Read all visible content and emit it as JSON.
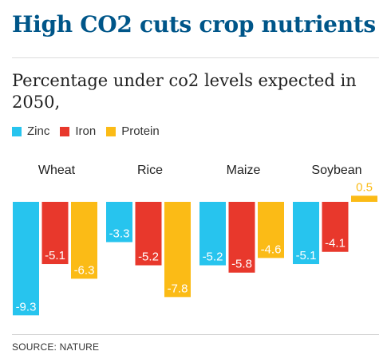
{
  "header": {
    "title": "High CO2 cuts crop nutrients",
    "subtitle": "Percentage under co2 levels expected in 2050,"
  },
  "source": "SOURCE: NATURE",
  "colors": {
    "zinc": "#27c4ee",
    "iron": "#e8382c",
    "protein": "#fbbb16",
    "title": "#005689"
  },
  "chart_data": {
    "type": "bar",
    "categories": [
      "Wheat",
      "Rice",
      "Maize",
      "Soybean"
    ],
    "series": [
      {
        "name": "Zinc",
        "values": [
          -9.3,
          -3.3,
          -5.2,
          -5.1
        ],
        "labels": [
          "-9.3",
          "-3.3",
          "-5.2",
          "-5.1"
        ]
      },
      {
        "name": "Iron",
        "values": [
          -5.1,
          -5.2,
          -5.8,
          -4.1
        ],
        "labels": [
          "-5.1",
          "-5.2",
          "-5.8",
          "-4.1"
        ]
      },
      {
        "name": "Protein",
        "values": [
          -6.3,
          -7.8,
          -4.6,
          0.5
        ],
        "labels": [
          "-6.3",
          "-7.8",
          "-4.6",
          "0.5"
        ]
      }
    ],
    "ylim": [
      -9.3,
      0.5
    ],
    "grid": false,
    "legend": "top-left"
  }
}
